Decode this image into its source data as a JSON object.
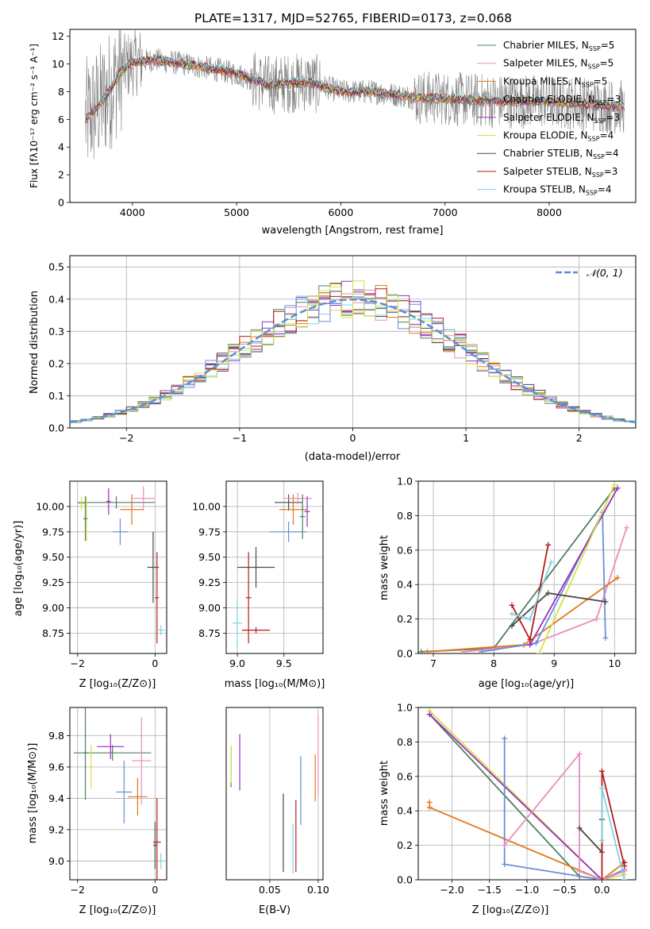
{
  "figure": {
    "title": "PLATE=1317, MJD=52765, FIBERID=0173, z=0.068"
  },
  "colors": {
    "cm": "#4e8060",
    "sm": "#e98cbf",
    "km": "#e2781b",
    "ce": "#9a2fbf",
    "se": "#7d3fbf",
    "ke": "#d7e04a",
    "cs": "#4a4a4a",
    "ss": "#b51b1b",
    "ks": "#7fd3e0",
    "mi": "#6a8fd8",
    "sl": "#cfe24a",
    "gray": "#808080"
  },
  "chart_data": [
    {
      "id": "spectrum",
      "type": "line",
      "xlabel": "wavelength [Angstrom, rest frame]",
      "ylabel_text": "Flux [fλ10⁻¹⁷ erg cm⁻² s⁻¹ A⁻¹]",
      "xlim": [
        3400,
        8830
      ],
      "ylim": [
        0,
        12.5
      ],
      "xticks": [
        4000,
        5000,
        6000,
        7000,
        8000
      ],
      "yticks": [
        0,
        2,
        4,
        6,
        8,
        10,
        12
      ],
      "legend_position": "top-right",
      "legend": [
        {
          "label": "Chabrier MILES, N",
          "sub": "SSP",
          "tail": "=5",
          "color": "cm"
        },
        {
          "label": "Salpeter MILES, N",
          "sub": "SSP",
          "tail": "=5",
          "color": "sm"
        },
        {
          "label": "Kroupa MILES, N",
          "sub": "SSP",
          "tail": "=5",
          "color": "km"
        },
        {
          "label": "Chabrier ELODIE, N",
          "sub": "SSP",
          "tail": "=3",
          "color": "cs"
        },
        {
          "label": "Salpeter ELODIE, N",
          "sub": "SSP",
          "tail": "=3",
          "color": "ce"
        },
        {
          "label": "Kroupa ELODIE, N",
          "sub": "SSP",
          "tail": "=4",
          "color": "ke"
        },
        {
          "label": "Chabrier STELIB, N",
          "sub": "SSP",
          "tail": "=4",
          "color": "cs"
        },
        {
          "label": "Salpeter STELIB, N",
          "sub": "SSP",
          "tail": "=3",
          "color": "ss"
        },
        {
          "label": "Kroupa STELIB, N",
          "sub": "SSP",
          "tail": "=4",
          "color": "ks"
        }
      ],
      "continuum": [
        [
          3550,
          6.0
        ],
        [
          3700,
          7.2
        ],
        [
          3800,
          8.3
        ],
        [
          3900,
          9.6
        ],
        [
          4000,
          10.1
        ],
        [
          4200,
          10.3
        ],
        [
          4500,
          10.0
        ],
        [
          4800,
          9.6
        ],
        [
          5000,
          9.3
        ],
        [
          5300,
          8.5
        ],
        [
          5700,
          8.7
        ],
        [
          6000,
          8.0
        ],
        [
          6300,
          8.0
        ],
        [
          6700,
          7.6
        ],
        [
          7000,
          7.5
        ],
        [
          7500,
          7.3
        ],
        [
          8000,
          7.3
        ],
        [
          8700,
          6.9
        ]
      ]
    },
    {
      "id": "residuals",
      "type": "line",
      "xlabel": "(data-model)/error",
      "ylabel": "Normed distribution",
      "xlim": [
        -2.5,
        2.5
      ],
      "ylim": [
        0,
        0.535
      ],
      "xticks": [
        -2,
        -1,
        0,
        1,
        2
      ],
      "yticks": [
        0.0,
        0.1,
        0.2,
        0.3,
        0.4,
        0.5
      ],
      "legend": "𝒩(0, 1)",
      "legend_position": "top-right",
      "gaussian": {
        "mean": 0,
        "sigma": 1
      }
    },
    {
      "id": "age_vs_Z",
      "type": "scatter",
      "xlabel": "Z [log₁₀(Z/Z⊙)]",
      "ylabel": "age  [log₁₀(age/yr)]",
      "xlim": [
        -2.2,
        0.3
      ],
      "ylim": [
        8.55,
        10.25
      ],
      "xticks": [
        -2,
        0
      ],
      "yticks": [
        8.75,
        9.0,
        9.25,
        9.5,
        9.75,
        10.0
      ],
      "points": [
        {
          "x": -1.0,
          "y": 10.04,
          "xerr": 1.0,
          "yerr": 0.06,
          "color": "cm"
        },
        {
          "x": -1.9,
          "y": 10.03,
          "xerr": 0.1,
          "yerr": 0.07,
          "color": "ke"
        },
        {
          "x": -1.77,
          "y": 9.88,
          "xerr": 0.05,
          "yerr": 0.22,
          "color": "ke"
        },
        {
          "x": -1.8,
          "y": 9.88,
          "xerr": 0.05,
          "yerr": 0.22,
          "color": "cm"
        },
        {
          "x": -1.2,
          "y": 10.05,
          "xerr": 0.06,
          "yerr": 0.13,
          "color": "ce"
        },
        {
          "x": -0.9,
          "y": 9.75,
          "xerr": 0.2,
          "yerr": 0.13,
          "color": "mi"
        },
        {
          "x": -0.6,
          "y": 9.97,
          "xerr": 0.3,
          "yerr": 0.15,
          "color": "km"
        },
        {
          "x": -0.3,
          "y": 10.08,
          "xerr": 0.3,
          "yerr": 0.12,
          "color": "sm"
        },
        {
          "x": -0.05,
          "y": 9.4,
          "xerr": 0.15,
          "yerr": 0.35,
          "color": "cs"
        },
        {
          "x": 0.05,
          "y": 9.1,
          "xerr": 0.05,
          "yerr": 0.45,
          "color": "ss"
        },
        {
          "x": 0.15,
          "y": 8.78,
          "xerr": 0.1,
          "yerr": 0.05,
          "color": "ks"
        }
      ]
    },
    {
      "id": "age_vs_mass",
      "type": "scatter",
      "xlabel": "mass [log₁₀(M/M⊙)]",
      "xlim": [
        8.88,
        9.92
      ],
      "ylim": [
        8.55,
        10.25
      ],
      "xticks": [
        9.0,
        9.5
      ],
      "yticks": [
        8.75,
        9.0,
        9.25,
        9.5,
        9.75,
        10.0
      ],
      "points": [
        {
          "x": 9.55,
          "y": 10.04,
          "xerr": 0.15,
          "yerr": 0.08,
          "color": "cs"
        },
        {
          "x": 9.65,
          "y": 10.08,
          "xerr": 0.15,
          "yerr": 0.06,
          "color": "sm"
        },
        {
          "x": 9.6,
          "y": 9.97,
          "xerr": 0.15,
          "yerr": 0.15,
          "color": "km"
        },
        {
          "x": 9.75,
          "y": 9.95,
          "xerr": 0.03,
          "yerr": 0.15,
          "color": "ce"
        },
        {
          "x": 9.55,
          "y": 9.75,
          "xerr": 0.2,
          "yerr": 0.1,
          "color": "mi"
        },
        {
          "x": 9.7,
          "y": 9.9,
          "xerr": 0.03,
          "yerr": 0.22,
          "color": "cm"
        },
        {
          "x": 9.2,
          "y": 9.4,
          "xerr": 0.2,
          "yerr": 0.2,
          "color": "cs"
        },
        {
          "x": 9.12,
          "y": 9.1,
          "xerr": 0.03,
          "yerr": 0.45,
          "color": "ss"
        },
        {
          "x": 9.2,
          "y": 8.78,
          "xerr": 0.15,
          "yerr": 0.03,
          "color": "ss"
        },
        {
          "x": 9.0,
          "y": 8.85,
          "xerr": 0.05,
          "yerr": 0.25,
          "color": "ks"
        }
      ]
    },
    {
      "id": "massweight_vs_age",
      "type": "line",
      "xlabel": "age  [log₁₀(age/yr)]",
      "ylabel": "mass weight",
      "xlim": [
        6.75,
        10.35
      ],
      "ylim": [
        0,
        1.0
      ],
      "xticks": [
        7,
        8,
        9,
        10
      ],
      "yticks": [
        0.0,
        0.2,
        0.4,
        0.6,
        0.8,
        1.0
      ],
      "series": [
        {
          "color": "cm",
          "x": [
            6.8,
            8.0,
            10.0
          ],
          "y": [
            0.01,
            0.03,
            0.96
          ]
        },
        {
          "color": "sm",
          "x": [
            7.5,
            8.6,
            9.7,
            10.2
          ],
          "y": [
            0.01,
            0.05,
            0.2,
            0.73
          ]
        },
        {
          "color": "km",
          "x": [
            6.9,
            8.5,
            10.05
          ],
          "y": [
            0.01,
            0.05,
            0.44
          ]
        },
        {
          "color": "mi",
          "x": [
            7.8,
            8.7,
            9.8,
            9.85
          ],
          "y": [
            0.01,
            0.06,
            0.82,
            0.09
          ]
        },
        {
          "color": "ce",
          "x": [
            8.6,
            10.05
          ],
          "y": [
            0.05,
            0.96
          ]
        },
        {
          "color": "ke",
          "x": [
            8.75,
            10.0
          ],
          "y": [
            0.0,
            0.98
          ]
        },
        {
          "color": "cs",
          "x": [
            8.3,
            8.9,
            9.85
          ],
          "y": [
            0.16,
            0.35,
            0.3
          ]
        },
        {
          "color": "ss",
          "x": [
            8.3,
            8.6,
            8.9
          ],
          "y": [
            0.28,
            0.08,
            0.63
          ]
        },
        {
          "color": "ks",
          "x": [
            8.3,
            8.6,
            8.95
          ],
          "y": [
            0.23,
            0.2,
            0.53
          ]
        }
      ]
    },
    {
      "id": "mass_vs_Z",
      "type": "scatter",
      "xlabel": "Z [log₁₀(Z/Z⊙)]",
      "ylabel": "mass [log₁₀(M/M⊙)]",
      "xlim": [
        -2.2,
        0.3
      ],
      "ylim": [
        8.88,
        9.98
      ],
      "xticks": [
        -2,
        0
      ],
      "yticks": [
        9.0,
        9.2,
        9.4,
        9.6,
        9.8
      ],
      "points": [
        {
          "x": -1.1,
          "y": 9.69,
          "xerr": 1.0,
          "yerr": 0.05,
          "color": "cm"
        },
        {
          "x": -1.8,
          "y": 9.69,
          "xerr": 0.05,
          "yerr": 0.3,
          "color": "cm"
        },
        {
          "x": -1.65,
          "y": 9.6,
          "xerr": 0.05,
          "yerr": 0.14,
          "color": "ke"
        },
        {
          "x": -1.15,
          "y": 9.73,
          "xerr": 0.35,
          "yerr": 0.08,
          "color": "ce"
        },
        {
          "x": -0.8,
          "y": 9.44,
          "xerr": 0.2,
          "yerr": 0.2,
          "color": "mi"
        },
        {
          "x": -0.45,
          "y": 9.41,
          "xerr": 0.25,
          "yerr": 0.12,
          "color": "km"
        },
        {
          "x": -0.35,
          "y": 9.64,
          "xerr": 0.25,
          "yerr": 0.28,
          "color": "sm"
        },
        {
          "x": 0.0,
          "y": 9.1,
          "xerr": 0.05,
          "yerr": 0.15,
          "color": "cs"
        },
        {
          "x": 0.05,
          "y": 9.12,
          "xerr": 0.1,
          "yerr": 0.28,
          "color": "ss"
        },
        {
          "x": 0.15,
          "y": 9.0,
          "xerr": 0.05,
          "yerr": 0.05,
          "color": "ks"
        }
      ]
    },
    {
      "id": "mass_vs_EBV",
      "type": "scatter",
      "xlabel": "E(B-V)",
      "xlim": [
        0.005,
        0.105
      ],
      "ylim": [
        8.88,
        9.98
      ],
      "xticks": [
        0.05,
        0.1
      ],
      "points": [
        {
          "x": 0.01,
          "y": 9.6,
          "xerr": 0,
          "yerr": 0.13,
          "color": "cm"
        },
        {
          "x": 0.01,
          "y": 9.62,
          "xerr": 0,
          "yerr": 0.12,
          "color": "ke"
        },
        {
          "x": 0.019,
          "y": 9.63,
          "xerr": 0,
          "yerr": 0.18,
          "color": "ce"
        },
        {
          "x": 0.064,
          "y": 9.18,
          "xerr": 0,
          "yerr": 0.25,
          "color": "cs"
        },
        {
          "x": 0.074,
          "y": 9.08,
          "xerr": 0,
          "yerr": 0.16,
          "color": "ks"
        },
        {
          "x": 0.077,
          "y": 9.16,
          "xerr": 0,
          "yerr": 0.23,
          "color": "ss"
        },
        {
          "x": 0.082,
          "y": 9.45,
          "xerr": 0,
          "yerr": 0.22,
          "color": "mi"
        },
        {
          "x": 0.097,
          "y": 9.53,
          "xerr": 0,
          "yerr": 0.15,
          "color": "km"
        },
        {
          "x": 0.1,
          "y": 9.68,
          "xerr": 0,
          "yerr": 0.26,
          "color": "sm"
        }
      ]
    },
    {
      "id": "massweight_vs_Z",
      "type": "line",
      "xlabel": "Z [log₁₀(Z/Z⊙)]",
      "ylabel": "mass weight",
      "xlim": [
        -2.45,
        0.45
      ],
      "ylim": [
        0,
        1.0
      ],
      "xticks": [
        -2.0,
        -1.5,
        -1.0,
        -0.5,
        0.0
      ],
      "yticks": [
        0.0,
        0.2,
        0.4,
        0.6,
        0.8,
        1.0
      ],
      "series": [
        {
          "color": "cm",
          "x": [
            -2.3,
            -0.3,
            0.0
          ],
          "y": [
            0.96,
            0.02,
            0.0
          ]
        },
        {
          "color": "ke",
          "x": [
            -2.3,
            0.0,
            0.3
          ],
          "y": [
            0.98,
            0.0,
            0.03
          ]
        },
        {
          "color": "ce",
          "x": [
            -2.3,
            0.0
          ],
          "y": [
            0.96,
            0.0
          ]
        },
        {
          "color": "km",
          "x": [
            -2.3,
            -2.3,
            0.0,
            0.3
          ],
          "y": [
            0.45,
            0.42,
            0.0,
            0.1
          ]
        },
        {
          "color": "mi",
          "x": [
            -1.3,
            -1.3,
            0.0,
            0.3
          ],
          "y": [
            0.82,
            0.09,
            0.0,
            0.06
          ]
        },
        {
          "color": "sm",
          "x": [
            -1.3,
            -0.3,
            -0.3,
            0.0,
            0.3
          ],
          "y": [
            0.2,
            0.73,
            0.05,
            0.0,
            0.05
          ]
        },
        {
          "color": "cs",
          "x": [
            -0.3,
            0.0,
            0.0
          ],
          "y": [
            0.3,
            0.16,
            0.35
          ]
        },
        {
          "color": "ss",
          "x": [
            0.0,
            0.0,
            0.3,
            0.3
          ],
          "y": [
            0.0,
            0.63,
            0.08,
            0.1
          ]
        },
        {
          "color": "ks",
          "x": [
            0.0,
            0.0,
            0.3
          ],
          "y": [
            0.23,
            0.53,
            0.0
          ]
        }
      ]
    }
  ]
}
